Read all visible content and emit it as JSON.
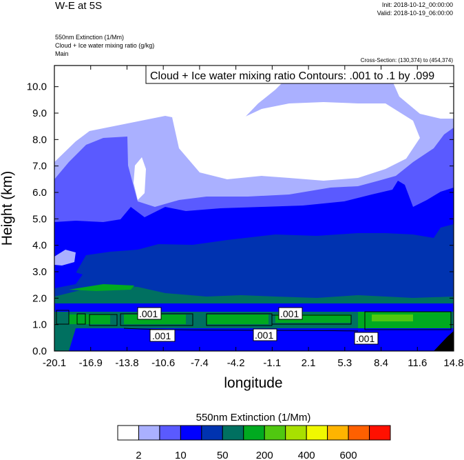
{
  "header": {
    "title": "W-E at 5S",
    "init": "Init: 2018-10-12_00:00:00",
    "valid": "Valid: 2018-10-19_06:00:00",
    "field1": "550nm Extinction   (1/Mm)",
    "field2": "Cloud + Ice water mixing ratio   (g/kg)",
    "field3": "Main",
    "cross_section": "Cross-Section: (130,374) to (454,374)"
  },
  "chart_data": {
    "type": "heatmap",
    "title": "W-E at 5S",
    "xlabel": "longitude",
    "ylabel": "Height (km)",
    "xlim": [
      -20.1,
      14.8
    ],
    "ylim": [
      0,
      10.8
    ],
    "xticks": [
      "-20.1",
      "-16.9",
      "-13.8",
      "-10.6",
      "-7.4",
      "-4.2",
      "-1.1",
      "2.1",
      "5.3",
      "8.4",
      "11.6",
      "14.8"
    ],
    "yticks": [
      "0.0",
      "1.0",
      "2.0",
      "3.0",
      "4.0",
      "5.0",
      "6.0",
      "7.0",
      "8.0",
      "9.0",
      "10.0"
    ],
    "contour_info": "Cloud + Ice water mixing ratio Contours: .001 to .1 by .099",
    "contour_labels": [
      ".001",
      ".001",
      ".001",
      ".001",
      ".001"
    ],
    "colorbar": {
      "title": "550nm Extinction  (1/Mm)",
      "colors": [
        "#ffffff",
        "#aab0ff",
        "#5a5aff",
        "#0000ff",
        "#0033b0",
        "#007060",
        "#00aa20",
        "#50c810",
        "#a8e000",
        "#f0f800",
        "#ffb400",
        "#ff6000",
        "#ff1000"
      ],
      "labels": [
        "2",
        "10",
        "50",
        "200",
        "400",
        "600"
      ]
    }
  }
}
